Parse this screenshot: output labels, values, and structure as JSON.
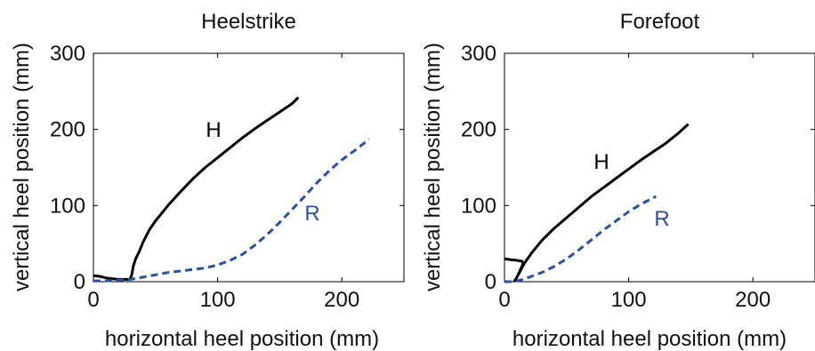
{
  "chart_data": [
    {
      "type": "line",
      "title": "Heelstrike",
      "xlabel": "horizontal heel position (mm)",
      "ylabel": "vertical heel position (mm)",
      "xlim": [
        0,
        250
      ],
      "ylim": [
        0,
        300
      ],
      "xticks": [
        0,
        100,
        200
      ],
      "yticks": [
        0,
        100,
        200,
        300
      ],
      "grid": false,
      "series": [
        {
          "name": "H",
          "color": "#000000",
          "style": "solid",
          "x": [
            0,
            5,
            10,
            15,
            20,
            25,
            29,
            30,
            31,
            32,
            34,
            37,
            40,
            45,
            50,
            60,
            70,
            80,
            90,
            100,
            110,
            120,
            130,
            140,
            150,
            160,
            165
          ],
          "y": [
            8,
            7,
            5,
            4,
            3,
            3,
            3,
            5,
            10,
            20,
            30,
            40,
            52,
            68,
            80,
            100,
            118,
            135,
            150,
            163,
            176,
            189,
            201,
            212,
            223,
            234,
            242
          ]
        },
        {
          "name": "R",
          "color": "#2b4fa3",
          "style": "dashed",
          "x": [
            0,
            10,
            20,
            30,
            40,
            50,
            60,
            70,
            80,
            90,
            100,
            110,
            120,
            130,
            140,
            150,
            160,
            170,
            180,
            190,
            200,
            210,
            222
          ],
          "y": [
            1,
            1,
            2,
            3,
            6,
            9,
            12,
            14,
            16,
            18,
            22,
            28,
            36,
            48,
            62,
            78,
            95,
            112,
            130,
            146,
            160,
            172,
            187
          ]
        }
      ]
    },
    {
      "type": "line",
      "title": "Forefoot",
      "xlabel": "horizontal heel position (mm)",
      "ylabel": "vertical heel position (mm)",
      "xlim": [
        0,
        250
      ],
      "ylim": [
        0,
        300
      ],
      "xticks": [
        0,
        100,
        200
      ],
      "yticks": [
        0,
        100,
        200,
        300
      ],
      "grid": false,
      "series": [
        {
          "name": "H",
          "color": "#000000",
          "style": "solid",
          "x": [
            0,
            5,
            10,
            14,
            15,
            13,
            10,
            8,
            9,
            12,
            16,
            22,
            30,
            40,
            50,
            60,
            70,
            80,
            90,
            100,
            110,
            120,
            130,
            140,
            148
          ],
          "y": [
            30,
            29,
            28,
            27,
            24,
            16,
            6,
            1,
            3,
            12,
            24,
            38,
            54,
            70,
            84,
            98,
            112,
            124,
            136,
            148,
            160,
            171,
            182,
            195,
            207
          ]
        },
        {
          "name": "R",
          "color": "#2b4fa3",
          "style": "dashed",
          "x": [
            0,
            5,
            10,
            15,
            20,
            30,
            40,
            50,
            60,
            70,
            80,
            90,
            100,
            110,
            122
          ],
          "y": [
            0,
            0,
            1,
            3,
            6,
            12,
            20,
            30,
            42,
            55,
            68,
            80,
            92,
            102,
            112
          ]
        }
      ]
    }
  ]
}
